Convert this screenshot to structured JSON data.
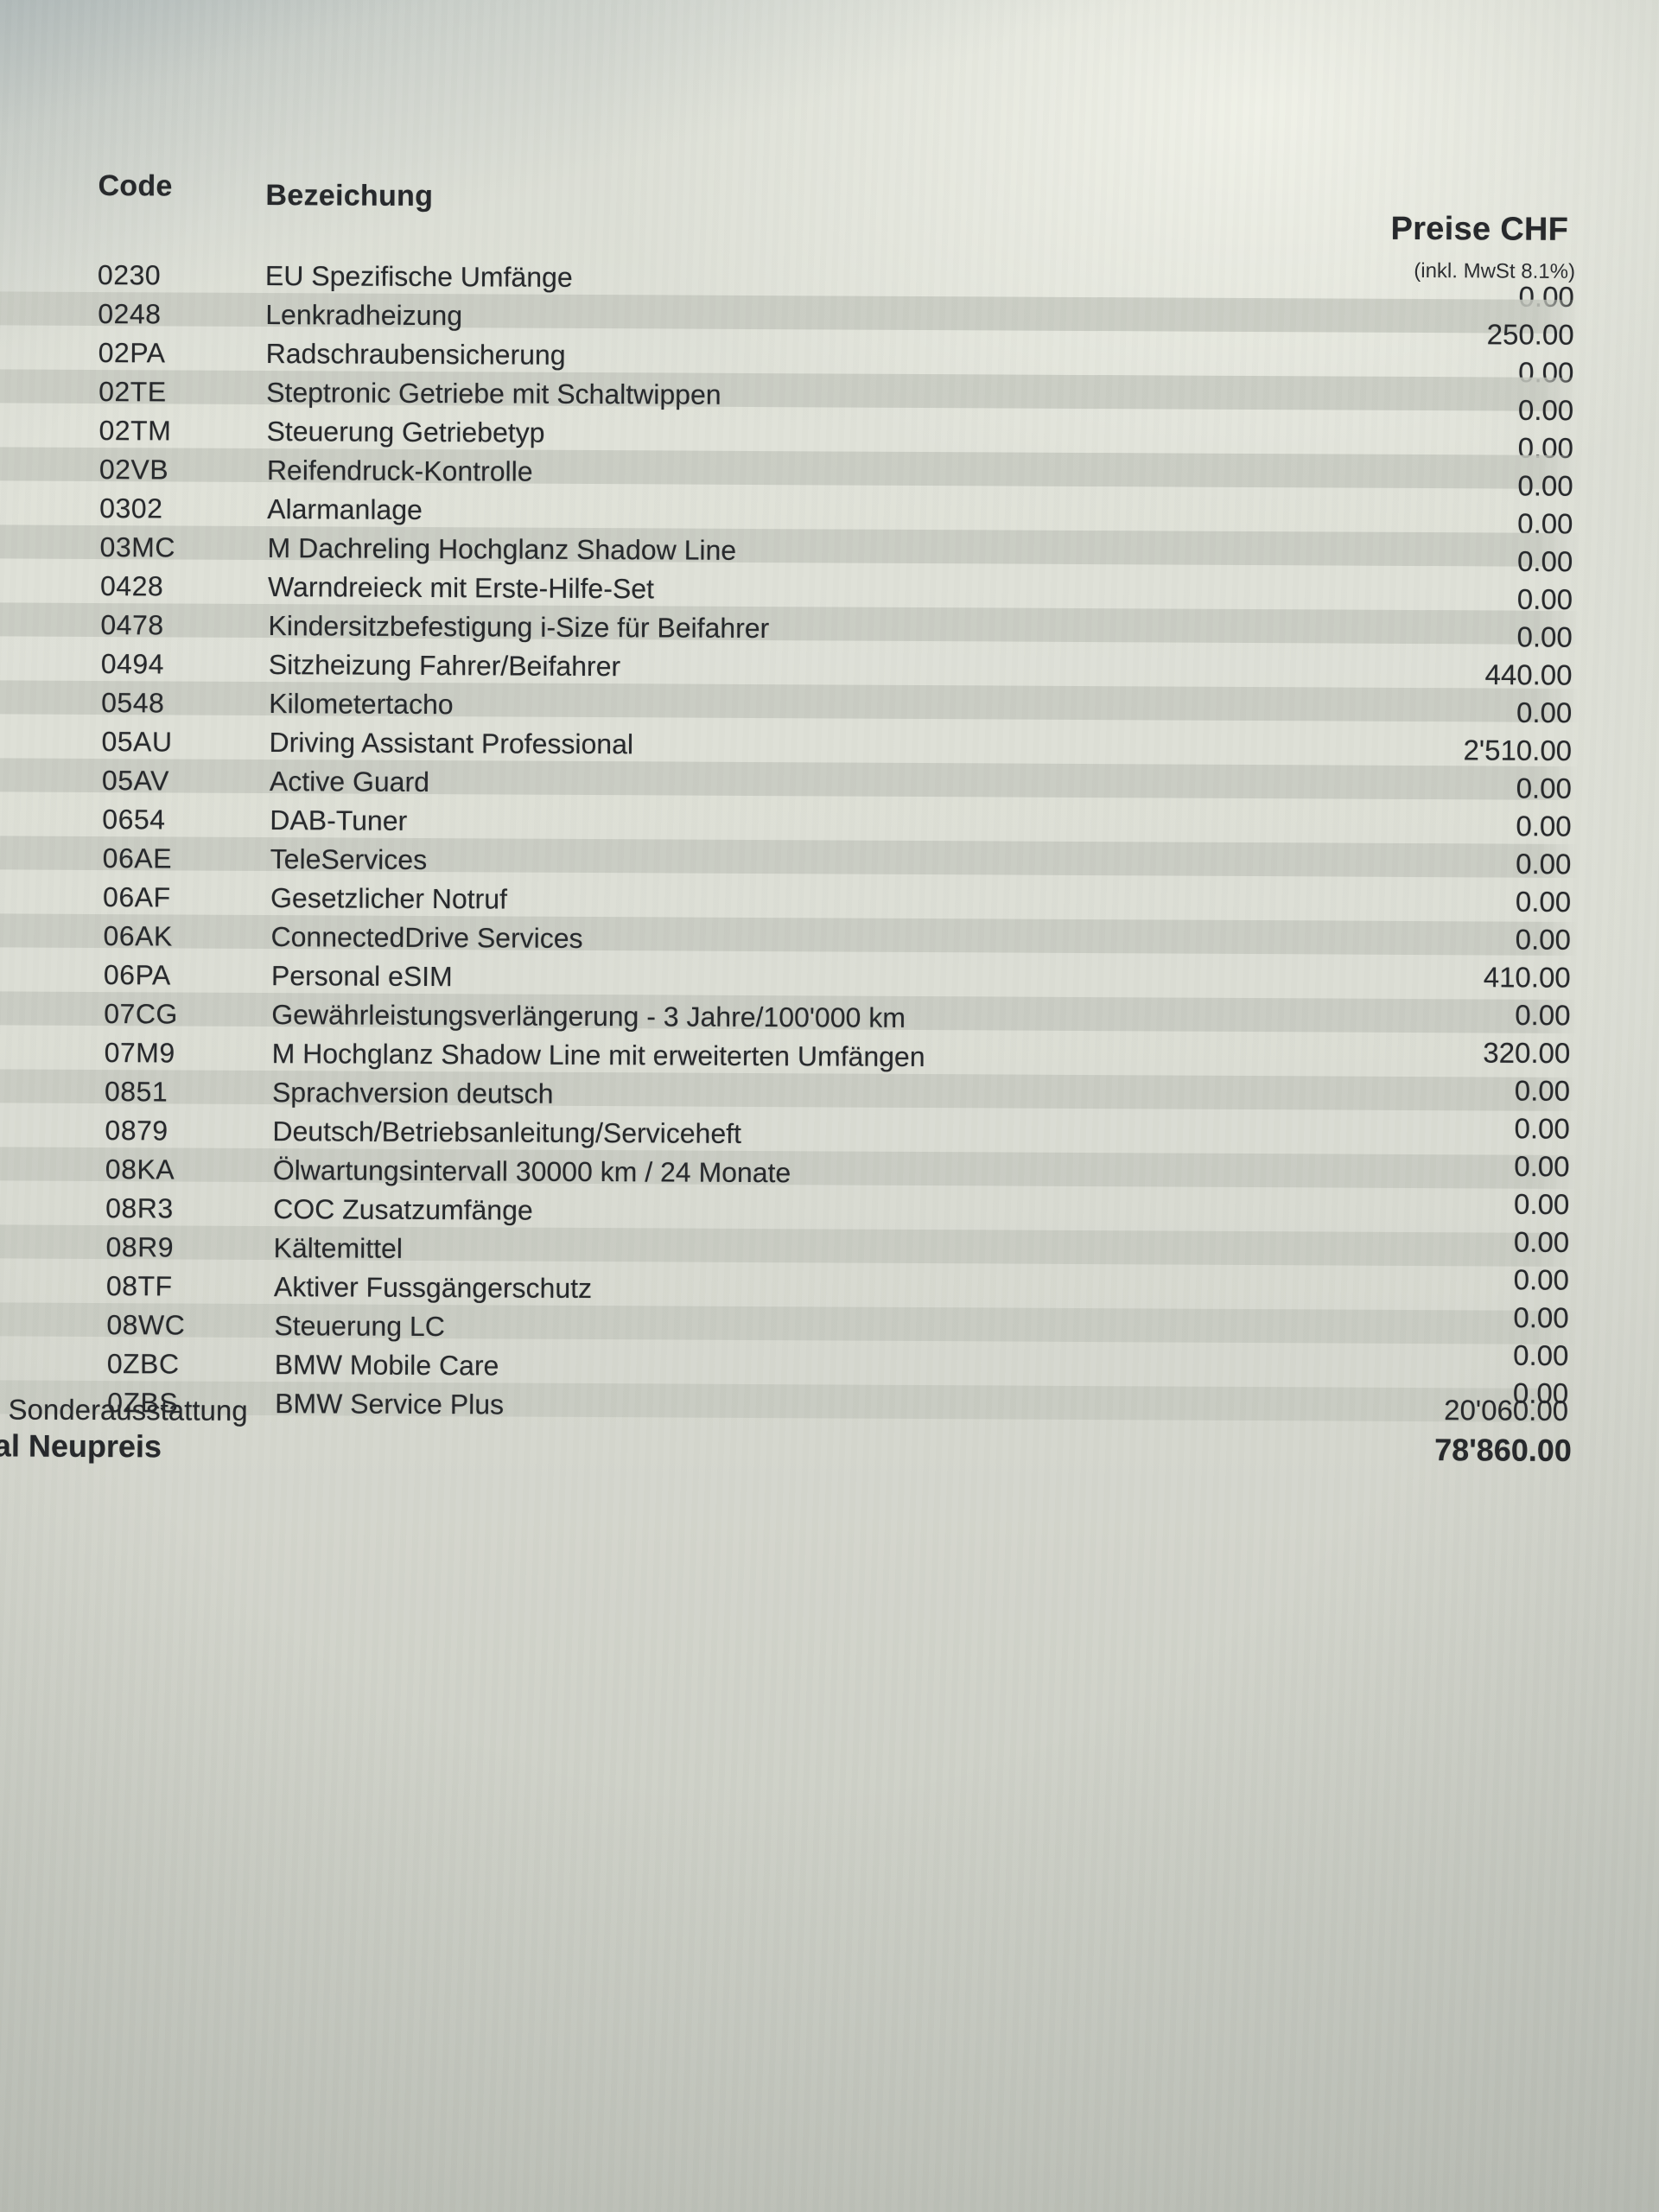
{
  "colors": {
    "paper": "#dfe1d8",
    "stripe": "#c6c9c0",
    "ink": "#26282b"
  },
  "document": {
    "header": {
      "code": "Code",
      "description": "Bezeichung",
      "price": "Preise CHF",
      "vat_note": "(inkl. MwSt 8.1%)"
    },
    "rows": [
      {
        "code": "0230",
        "label": "EU Spezifische Umfänge",
        "price": "0.00"
      },
      {
        "code": "0248",
        "label": "Lenkradheizung",
        "price": "250.00"
      },
      {
        "code": "02PA",
        "label": "Radschraubensicherung",
        "price": "0.00"
      },
      {
        "code": "02TE",
        "label": "Steptronic Getriebe mit Schaltwippen",
        "price": "0.00"
      },
      {
        "code": "02TM",
        "label": "Steuerung Getriebetyp",
        "price": "0.00"
      },
      {
        "code": "02VB",
        "label": "Reifendruck-Kontrolle",
        "price": "0.00"
      },
      {
        "code": "0302",
        "label": "Alarmanlage",
        "price": "0.00"
      },
      {
        "code": "03MC",
        "label": "M Dachreling Hochglanz Shadow Line",
        "price": "0.00"
      },
      {
        "code": "0428",
        "label": "Warndreieck mit Erste-Hilfe-Set",
        "price": "0.00"
      },
      {
        "code": "0478",
        "label": "Kindersitzbefestigung i-Size für Beifahrer",
        "price": "0.00"
      },
      {
        "code": "0494",
        "label": "Sitzheizung Fahrer/Beifahrer",
        "price": "440.00"
      },
      {
        "code": "0548",
        "label": "Kilometertacho",
        "price": "0.00"
      },
      {
        "code": "05AU",
        "label": "Driving Assistant Professional",
        "price": "2'510.00"
      },
      {
        "code": "05AV",
        "label": "Active Guard",
        "price": "0.00"
      },
      {
        "code": "0654",
        "label": "DAB-Tuner",
        "price": "0.00"
      },
      {
        "code": "06AE",
        "label": "TeleServices",
        "price": "0.00"
      },
      {
        "code": "06AF",
        "label": "Gesetzlicher Notruf",
        "price": "0.00"
      },
      {
        "code": "06AK",
        "label": "ConnectedDrive Services",
        "price": "0.00"
      },
      {
        "code": "06PA",
        "label": "Personal eSIM",
        "price": "410.00"
      },
      {
        "code": "07CG",
        "label": "Gewährleistungsverlängerung - 3 Jahre/100'000 km",
        "price": "0.00"
      },
      {
        "code": "07M9",
        "label": "M Hochglanz Shadow Line mit erweiterten Umfängen",
        "price": "320.00"
      },
      {
        "code": "0851",
        "label": "Sprachversion deutsch",
        "price": "0.00"
      },
      {
        "code": "0879",
        "label": "Deutsch/Betriebsanleitung/Serviceheft",
        "price": "0.00"
      },
      {
        "code": "08KA",
        "label": "Ölwartungsintervall 30000 km / 24 Monate",
        "price": "0.00"
      },
      {
        "code": "08R3",
        "label": "COC Zusatzumfänge",
        "price": "0.00"
      },
      {
        "code": "08R9",
        "label": "Kältemittel",
        "price": "0.00"
      },
      {
        "code": "08TF",
        "label": "Aktiver Fussgängerschutz",
        "price": "0.00"
      },
      {
        "code": "08WC",
        "label": "Steuerung LC",
        "price": "0.00"
      },
      {
        "code": "0ZBC",
        "label": "BMW Mobile Care",
        "price": "0.00"
      },
      {
        "code": "0ZBS",
        "label": "BMW Service Plus",
        "price": "0.00"
      }
    ],
    "totals": {
      "options_label": "l Sonderausstattung",
      "options_price": "20'060.00",
      "new_price_label": "al Neupreis",
      "new_price_value": "78'860.00"
    }
  }
}
